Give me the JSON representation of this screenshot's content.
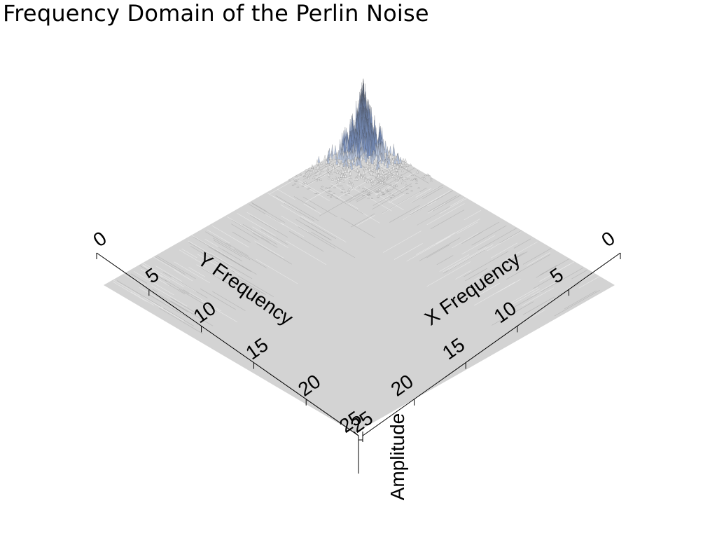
{
  "chart_data": {
    "type": "surface3d",
    "title": "Frequency Domain of the Perlin Noise",
    "xlabel": "X Frequency",
    "ylabel": "Y Frequency",
    "zlabel": "Amplitude",
    "x_range": [
      0,
      25
    ],
    "y_range": [
      0,
      25
    ],
    "x_ticks": [
      0,
      5,
      10,
      15,
      20,
      25
    ],
    "y_ticks": [
      0,
      5,
      10,
      15,
      20,
      25
    ],
    "grid": false,
    "surface_color": "#d3d3d3",
    "peak_color": "#7b93c2",
    "peak_location": "low X and low Y frequencies (near origin 0,0)"
  }
}
